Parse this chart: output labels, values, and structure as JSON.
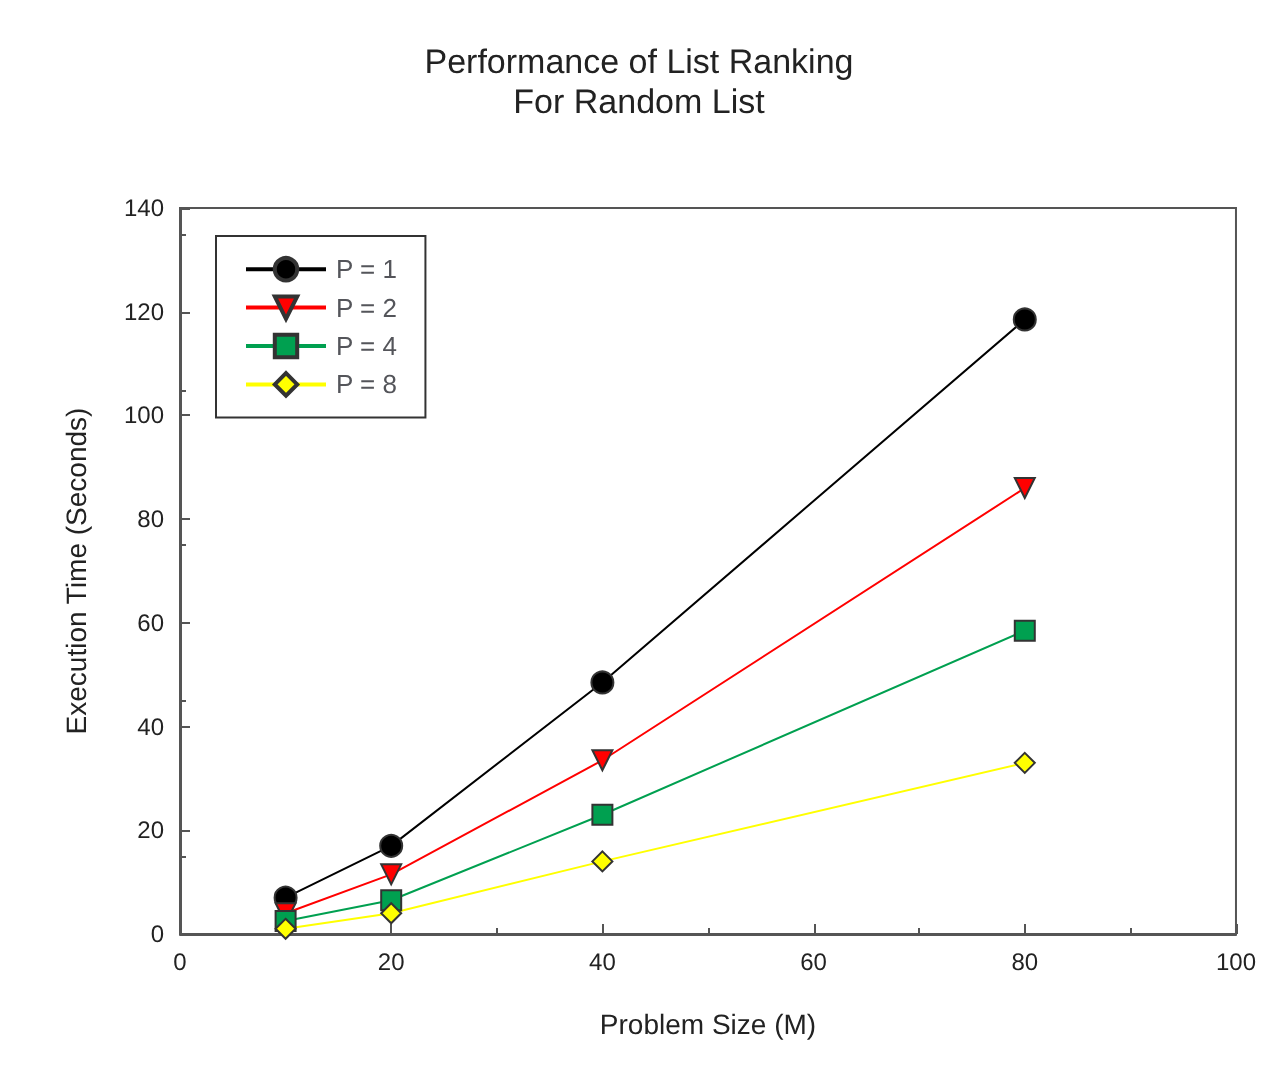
{
  "chart_data": {
    "type": "line",
    "title": "Performance of List Ranking\nFor Random List",
    "xlabel": "Problem Size (M)",
    "ylabel": "Execution Time (Seconds)",
    "x": [
      10,
      20,
      40,
      80
    ],
    "series": [
      {
        "name": "P = 1",
        "color": "#000000",
        "marker": "circle",
        "values": [
          7,
          17,
          48.5,
          118.5
        ]
      },
      {
        "name": "P = 2",
        "color": "#ff0000",
        "marker": "triangle",
        "values": [
          4,
          11.5,
          33.5,
          86
        ]
      },
      {
        "name": "P = 4",
        "color": "#00a050",
        "marker": "square",
        "values": [
          2.5,
          6.5,
          23,
          58.5
        ]
      },
      {
        "name": "P = 8",
        "color": "#ffff00",
        "marker": "diamond",
        "values": [
          1,
          4,
          14,
          33
        ]
      }
    ],
    "xlim": [
      0,
      100
    ],
    "xticks": [
      0,
      20,
      40,
      60,
      80,
      100
    ],
    "ylim": [
      0,
      140
    ],
    "yticks": [
      0,
      20,
      40,
      60,
      80,
      100,
      120,
      140
    ],
    "grid": false,
    "legend": "top left"
  }
}
